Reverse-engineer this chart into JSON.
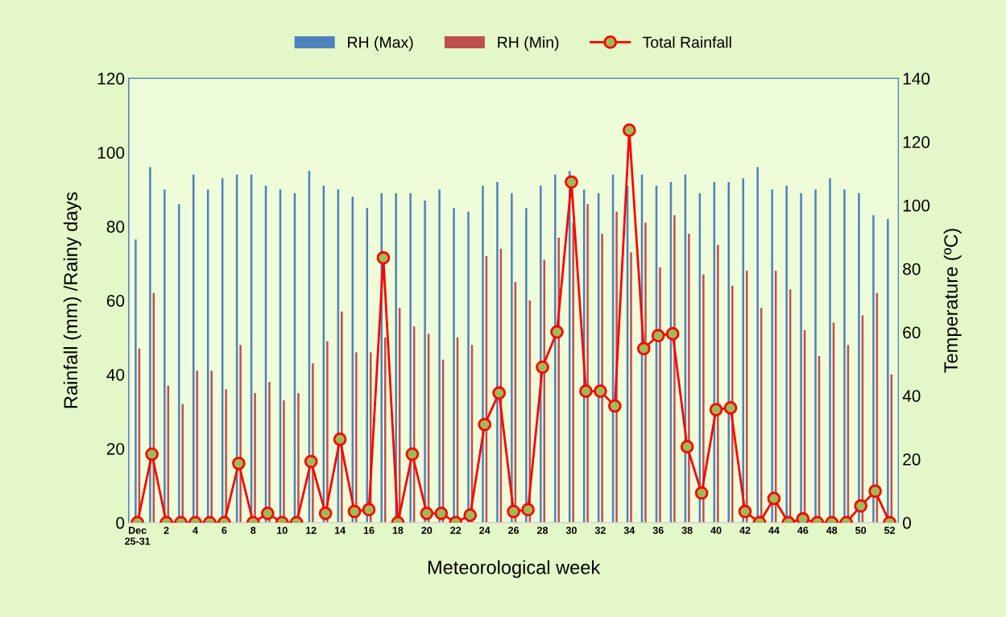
{
  "chart_data": {
    "type": "bar",
    "xlabel": "Meteorological week",
    "ylabel": "Rainfall (mm) /Rainy days",
    "y2label": "Temperature (ºC)",
    "categories": [
      "Dec\n25-31",
      null,
      "2",
      null,
      "4",
      null,
      "6",
      null,
      "8",
      null,
      "10",
      null,
      "12",
      null,
      "14",
      null,
      "16",
      null,
      "18",
      null,
      "20",
      null,
      "22",
      null,
      "24",
      null,
      "26",
      null,
      "28",
      null,
      "30",
      null,
      "32",
      null,
      "34",
      null,
      "36",
      null,
      "38",
      null,
      "40",
      null,
      "42",
      null,
      "44",
      null,
      "46",
      null,
      "48",
      null,
      "50",
      null,
      "52"
    ],
    "series": [
      {
        "name": "RH (Max)",
        "color": "#4f81bd",
        "values": [
          76.5,
          96,
          90,
          86,
          94,
          90,
          93,
          94,
          94,
          91,
          90,
          89,
          95,
          91,
          90,
          88,
          85,
          89,
          89,
          89,
          87,
          90,
          85,
          84,
          91,
          92,
          89,
          85,
          91,
          94,
          95,
          90,
          89,
          94,
          91,
          94,
          91,
          92,
          94,
          89,
          92,
          92,
          93,
          96,
          90,
          91,
          89,
          90,
          93,
          90,
          89,
          83,
          82
        ]
      },
      {
        "name": "RH (Min)",
        "color": "#c0504d",
        "values": [
          47,
          62,
          37,
          32,
          41,
          41,
          36,
          48,
          35,
          38,
          33,
          35,
          43,
          49,
          57,
          46,
          46,
          50,
          58,
          53,
          51,
          44,
          50,
          48,
          72,
          74,
          65,
          60,
          71,
          77,
          81,
          86,
          78,
          84,
          73,
          81,
          69,
          83,
          78,
          67,
          75,
          64,
          68,
          58,
          68,
          63,
          52,
          45,
          54,
          48,
          56,
          62,
          40
        ]
      },
      {
        "name": "Total Rainfall",
        "type": "line",
        "color": "#ff0000",
        "marker": "circle",
        "values": [
          0,
          18.5,
          0,
          0,
          0,
          0,
          0,
          16,
          0,
          2.5,
          0,
          0,
          16.5,
          2.5,
          22.5,
          3,
          3.5,
          71.5,
          0,
          18.5,
          2.5,
          2.5,
          0,
          2,
          26.5,
          35,
          3,
          3.5,
          42,
          51.5,
          92,
          35.5,
          35.5,
          31.5,
          106,
          47,
          50.5,
          51,
          20.5,
          8,
          30.5,
          31,
          3,
          0,
          6.5,
          0,
          1,
          0,
          0,
          0,
          4.5,
          8.5,
          0
        ]
      }
    ],
    "ylim": [
      0,
      120
    ],
    "yticks": [
      0,
      20,
      40,
      60,
      80,
      100,
      120
    ],
    "y2lim": [
      0,
      140
    ],
    "y2ticks": [
      0,
      20,
      40,
      60,
      80,
      100,
      120,
      140
    ],
    "grid": false,
    "legend": "top"
  }
}
